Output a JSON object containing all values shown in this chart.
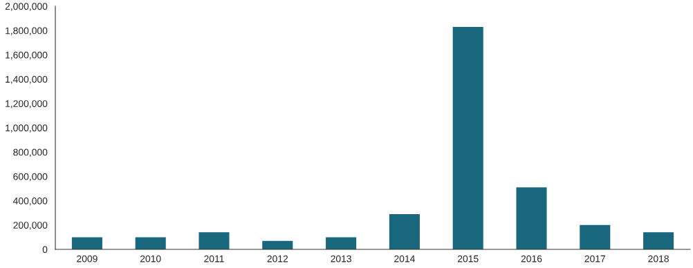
{
  "chart_data": {
    "type": "bar",
    "categories": [
      "2009",
      "2010",
      "2011",
      "2012",
      "2013",
      "2014",
      "2015",
      "2016",
      "2017",
      "2018"
    ],
    "values": [
      100000,
      100000,
      140000,
      70000,
      100000,
      290000,
      1830000,
      510000,
      200000,
      140000
    ],
    "color": "#19677c",
    "ylim": [
      0,
      2000000
    ],
    "yticks": [
      {
        "value": 0,
        "label": "0"
      },
      {
        "value": 200000,
        "label": "200,000"
      },
      {
        "value": 400000,
        "label": "400,000"
      },
      {
        "value": 600000,
        "label": "600,000"
      },
      {
        "value": 800000,
        "label": "800,000"
      },
      {
        "value": 1000000,
        "label": "1,000,000"
      },
      {
        "value": 1200000,
        "label": "1,200,000"
      },
      {
        "value": 1400000,
        "label": "1,400,000"
      },
      {
        "value": 1600000,
        "label": "1,600,000"
      },
      {
        "value": 1800000,
        "label": "1,800,000"
      },
      {
        "value": 2000000,
        "label": "2,000,000"
      }
    ],
    "grid": false,
    "legend": false
  }
}
